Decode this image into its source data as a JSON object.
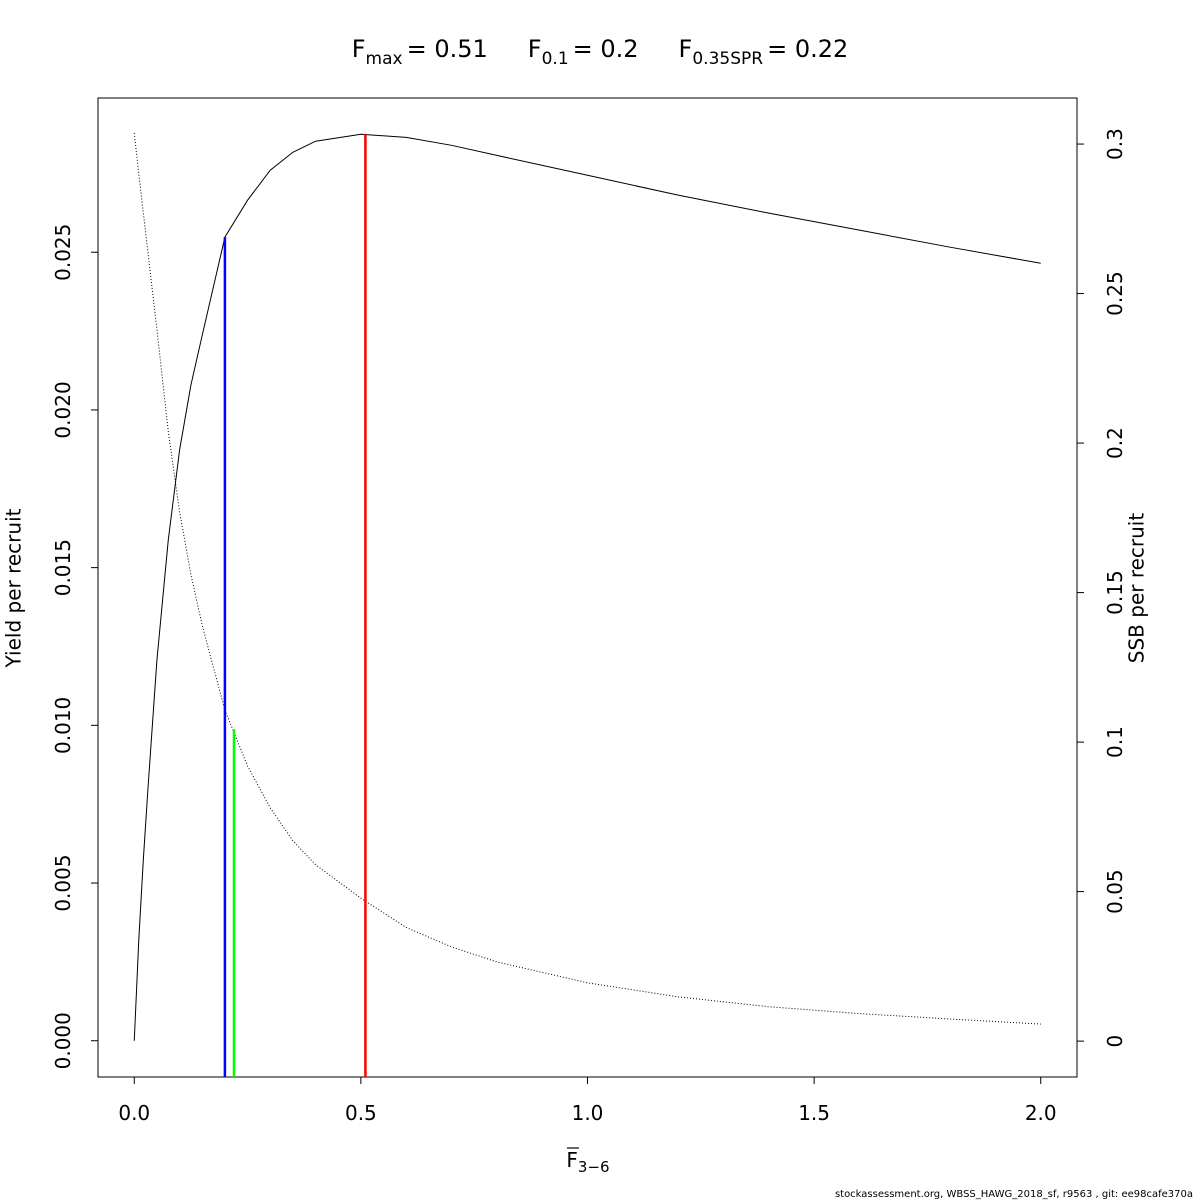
{
  "chart_data": {
    "type": "line",
    "reference_lines": [
      {
        "symbol": "F",
        "subscript": "max",
        "text": "= 0.51",
        "value": 0.51,
        "color": "#ff0000",
        "top": 0.02874,
        "top_axis": "y"
      },
      {
        "symbol": "F",
        "subscript": "0.1",
        "text": "= 0.2",
        "value": 0.2,
        "color": "#0000ff",
        "top": 0.02548,
        "top_axis": "y"
      },
      {
        "symbol": "F",
        "subscript": "0.35SPR",
        "text": "= 0.22",
        "value": 0.22,
        "color": "#00ff00",
        "top": 0.1043,
        "top_axis": "y2"
      }
    ],
    "x_label": {
      "symbol": "F",
      "subscript": "3−6"
    },
    "y_label": "Yield per recruit",
    "y2_label": "SSB per recruit",
    "footer": "stockassessment.org, WBSS_HAWG_2018_sf, r9563 , git: ee98cafe370a",
    "x": [
      0,
      0.01,
      0.02,
      0.03,
      0.05,
      0.075,
      0.1,
      0.125,
      0.15,
      0.2,
      0.25,
      0.3,
      0.35,
      0.4,
      0.5,
      0.6,
      0.7,
      0.8,
      1.0,
      1.2,
      1.4,
      1.6,
      1.8,
      2.0
    ],
    "series": [
      {
        "color": "#000000",
        "line_style": "solid",
        "axis": "y",
        "values": [
          0,
          0.0032,
          0.00574,
          0.00795,
          0.01207,
          0.01587,
          0.01873,
          0.02079,
          0.02237,
          0.02548,
          0.02665,
          0.0276,
          0.02817,
          0.02852,
          0.02874,
          0.02864,
          0.02839,
          0.02807,
          0.02744,
          0.02681,
          0.02624,
          0.0257,
          0.02516,
          0.02465
        ]
      },
      {
        "color": "#000000",
        "line_style": "dotted",
        "axis": "y2",
        "values": [
          0.3037,
          0.29,
          0.277,
          0.264,
          0.238,
          0.204,
          0.177,
          0.156,
          0.139,
          0.1107,
          0.092,
          0.078,
          0.067,
          0.059,
          0.0478,
          0.038,
          0.0315,
          0.0265,
          0.0195,
          0.0148,
          0.0115,
          0.0092,
          0.0074,
          0.0057
        ]
      }
    ],
    "xlim": [
      -0.08,
      2.08
    ],
    "ylim": [
      -0.00115,
      0.02989
    ],
    "y2lim": [
      -0.012,
      0.3154
    ],
    "xticks": [
      {
        "value": 0,
        "label": "0.0"
      },
      {
        "value": 0.5,
        "label": "0.5"
      },
      {
        "value": 1,
        "label": "1.0"
      },
      {
        "value": 1.5,
        "label": "1.5"
      },
      {
        "value": 2,
        "label": "2.0"
      }
    ],
    "yticks": [
      {
        "value": 0,
        "label": "0.000"
      },
      {
        "value": 0.005,
        "label": "0.005"
      },
      {
        "value": 0.01,
        "label": "0.010"
      },
      {
        "value": 0.015,
        "label": "0.015"
      },
      {
        "value": 0.02,
        "label": "0.020"
      },
      {
        "value": 0.025,
        "label": "0.025"
      }
    ],
    "y2ticks": [
      0,
      0.05,
      0.1,
      0.15,
      0.2,
      0.25,
      0.3
    ]
  }
}
